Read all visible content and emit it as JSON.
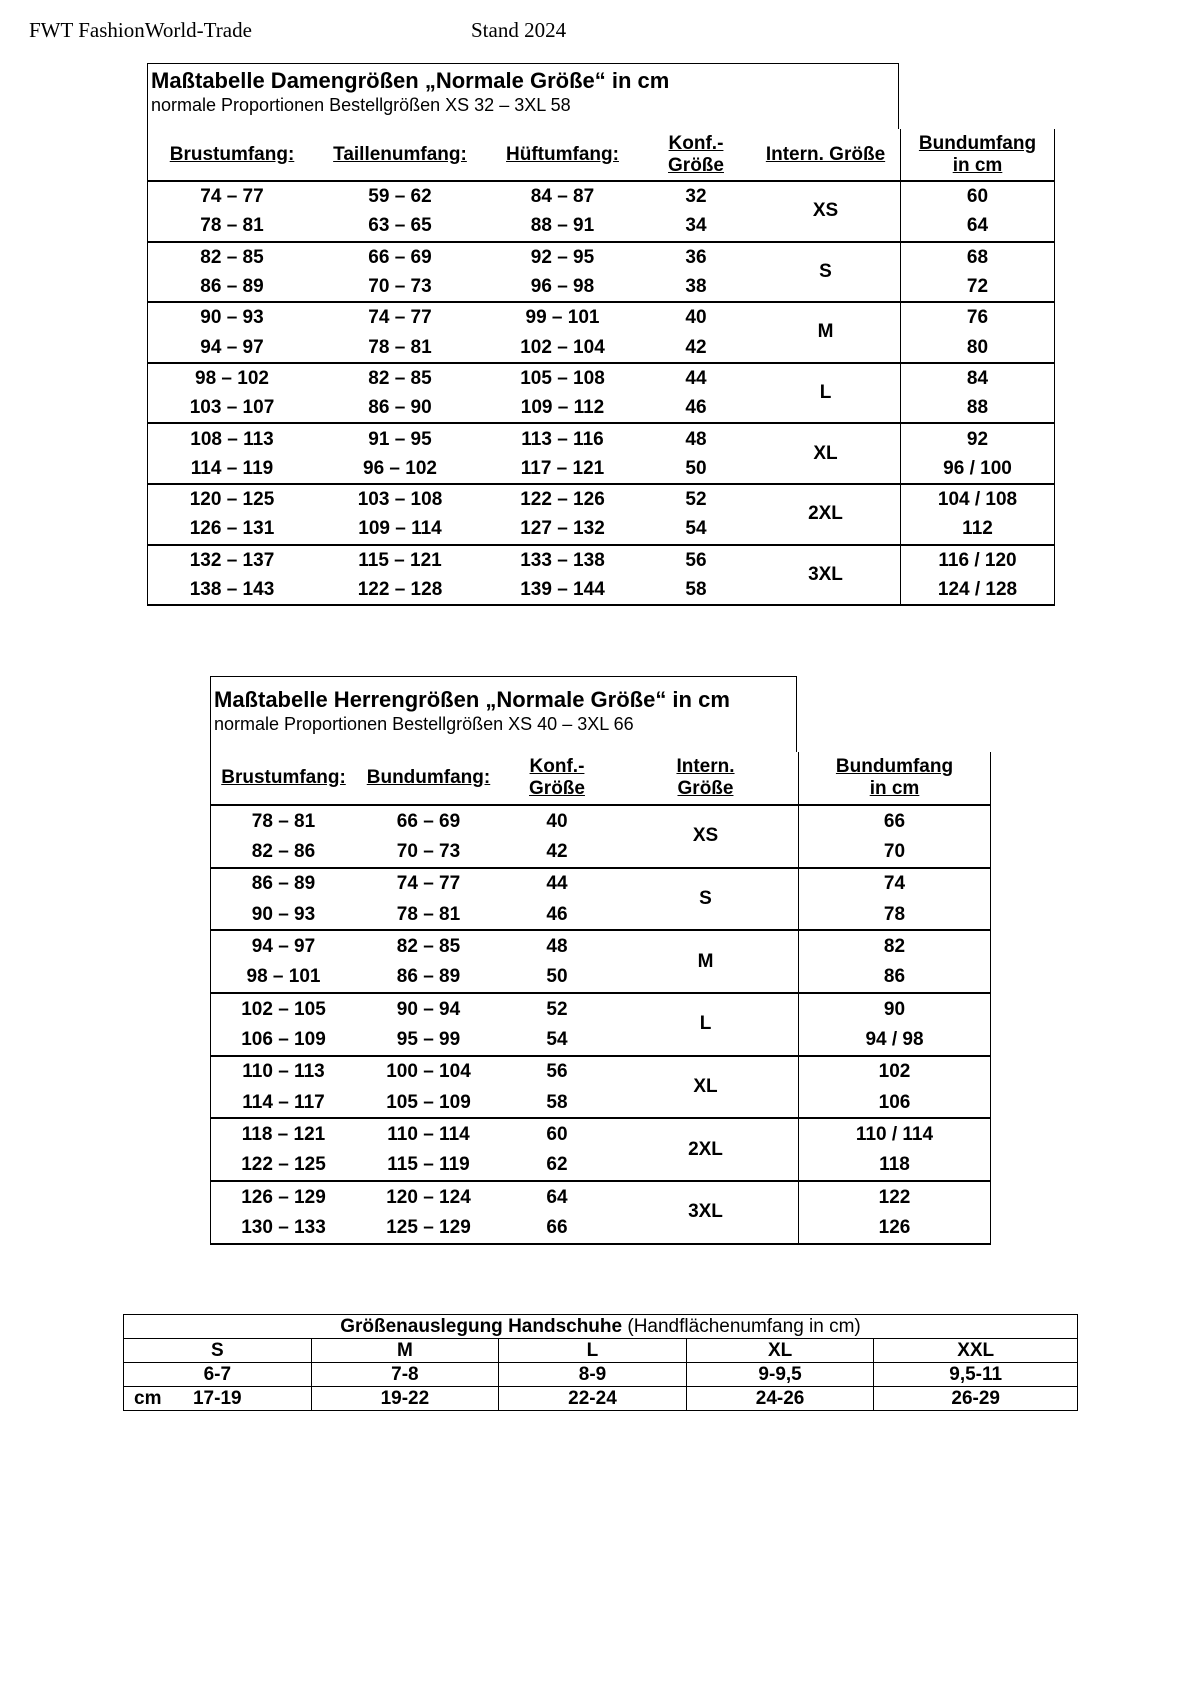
{
  "header": {
    "company": "FWT FashionWorld-Trade",
    "stand": "Stand 2024"
  },
  "women": {
    "title": "Maßtabelle Damengrößen „Normale Größe“ in cm",
    "subtitle": "normale Proportionen Bestellgrößen XS 32 – 3XL 58",
    "columns": [
      "Brustumfang:",
      "Taillenumfang:",
      "Hüftumfang:",
      "Konf.-\nGröße",
      "Intern. Größe",
      "Bundumfang\nin cm"
    ],
    "groups": [
      {
        "size": "XS",
        "rows": [
          [
            "74 – 77",
            "59 – 62",
            "84 – 87",
            "32",
            "60"
          ],
          [
            "78 – 81",
            "63 – 65",
            "88 – 91",
            "34",
            "64"
          ]
        ]
      },
      {
        "size": "S",
        "rows": [
          [
            "82 – 85",
            "66 – 69",
            "92 – 95",
            "36",
            "68"
          ],
          [
            "86 – 89",
            "70 – 73",
            "96 – 98",
            "38",
            "72"
          ]
        ]
      },
      {
        "size": "M",
        "rows": [
          [
            "90 – 93",
            "74 – 77",
            "99 – 101",
            "40",
            "76"
          ],
          [
            "94 – 97",
            "78 – 81",
            "102 – 104",
            "42",
            "80"
          ]
        ]
      },
      {
        "size": "L",
        "rows": [
          [
            "98 – 102",
            "82 – 85",
            "105 – 108",
            "44",
            "84"
          ],
          [
            "103 – 107",
            "86 – 90",
            "109 – 112",
            "46",
            "88"
          ]
        ]
      },
      {
        "size": "XL",
        "rows": [
          [
            "108 – 113",
            "91 – 95",
            "113 – 116",
            "48",
            "92"
          ],
          [
            "114 – 119",
            "96 – 102",
            "117 – 121",
            "50",
            "96  / 100"
          ]
        ]
      },
      {
        "size": "2XL",
        "rows": [
          [
            "120 – 125",
            "103 – 108",
            "122 – 126",
            "52",
            "104 / 108"
          ],
          [
            "126 – 131",
            "109 – 114",
            "127 – 132",
            "54",
            "112"
          ]
        ]
      },
      {
        "size": "3XL",
        "rows": [
          [
            "132 – 137",
            "115 – 121",
            "133 – 138",
            "56",
            "116 / 120"
          ],
          [
            "138 – 143",
            "122 – 128",
            "139 – 144",
            "58",
            "124 / 128"
          ]
        ]
      }
    ]
  },
  "men": {
    "title": "Maßtabelle Herrengrößen „Normale Größe“ in cm",
    "subtitle": "normale Proportionen Bestellgrößen XS 40 – 3XL 66",
    "columns": [
      "Brustumfang:",
      "Bundumfang:",
      "Konf.-\nGröße",
      "Intern.\nGröße",
      "Bundumfang\nin cm"
    ],
    "groups": [
      {
        "size": "XS",
        "rows": [
          [
            "78 – 81",
            "66 – 69",
            "40",
            "66"
          ],
          [
            "82 – 86",
            "70 – 73",
            "42",
            "70"
          ]
        ]
      },
      {
        "size": "S",
        "rows": [
          [
            "86 – 89",
            "74 – 77",
            "44",
            "74"
          ],
          [
            "90 – 93",
            "78 – 81",
            "46",
            "78"
          ]
        ]
      },
      {
        "size": "M",
        "rows": [
          [
            "94 – 97",
            "82 – 85",
            "48",
            "82"
          ],
          [
            "98 – 101",
            "86 – 89",
            "50",
            "86"
          ]
        ]
      },
      {
        "size": "L",
        "rows": [
          [
            "102 – 105",
            "90 – 94",
            "52",
            "90"
          ],
          [
            "106 – 109",
            "95 – 99",
            "54",
            "94  /  98"
          ]
        ]
      },
      {
        "size": "XL",
        "rows": [
          [
            "110 – 113",
            "100 – 104",
            "56",
            "102"
          ],
          [
            "114 – 117",
            "105 – 109",
            "58",
            "106"
          ]
        ]
      },
      {
        "size": "2XL",
        "rows": [
          [
            "118 – 121",
            "110 – 114",
            "60",
            "110 / 114"
          ],
          [
            "122 – 125",
            "115 – 119",
            "62",
            "118"
          ]
        ]
      },
      {
        "size": "3XL",
        "rows": [
          [
            "126 – 129",
            "120 – 124",
            "64",
            "122"
          ],
          [
            "130 – 133",
            "125 – 129",
            "66",
            "126"
          ]
        ]
      }
    ]
  },
  "gloves": {
    "title_bold": "Größenauslegung Handschuhe",
    "title_rest": " (Handflächenumfang in cm)",
    "sizes": [
      "S",
      "M",
      "L",
      "XL",
      "XXL"
    ],
    "numbers": [
      "6-7",
      "7-8",
      "8-9",
      "9-9,5",
      "9,5-11"
    ],
    "cm_label": "cm",
    "cm": [
      "17-19",
      "19-22",
      "22-24",
      "24-26",
      "26-29"
    ]
  }
}
